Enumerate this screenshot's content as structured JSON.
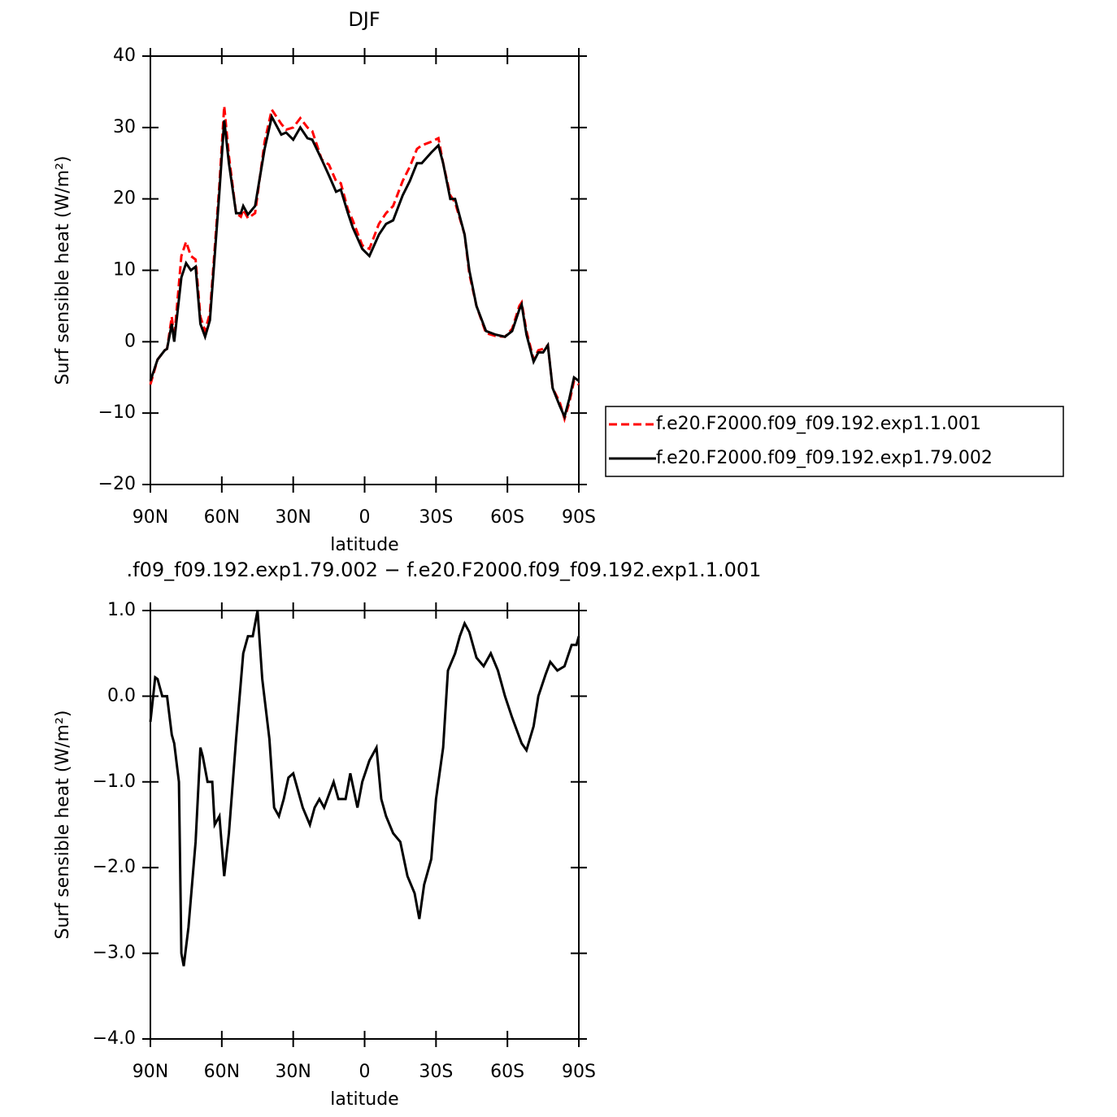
{
  "chart_data": [
    {
      "type": "line",
      "title": "DJF",
      "xlabel": "latitude",
      "ylabel": "Surf sensible heat (W/m²)",
      "x": [
        90,
        87,
        84,
        83,
        81,
        80,
        77,
        75,
        73,
        71,
        69,
        67,
        65,
        63,
        61,
        59,
        57,
        54,
        52,
        51,
        49,
        46,
        42,
        39,
        35,
        33,
        30,
        27,
        24,
        22,
        18,
        15,
        12,
        10,
        7,
        5,
        1,
        -2,
        -6,
        -9,
        -12,
        -16,
        -19,
        -22,
        -24,
        -28,
        -31,
        -33,
        -36,
        -38,
        -42,
        -44,
        -47,
        -51,
        -55,
        -59,
        -62,
        -65,
        -66,
        -68,
        -71,
        -73,
        -75,
        -77,
        -79,
        -82,
        -84,
        -86,
        -88,
        -90
      ],
      "series": [
        {
          "name": "f.e20.F2000.f09_f09.192.exp1.1.001",
          "color": "#ff0000",
          "linestyle": "dashed",
          "values": [
            -6,
            -2.5,
            -1.2,
            -1,
            3.5,
            0.5,
            12,
            14,
            12,
            11.5,
            3.5,
            1.5,
            4,
            13,
            22,
            33,
            26,
            18,
            17.5,
            18.5,
            17.3,
            18,
            28,
            32.5,
            30.5,
            29.7,
            30,
            31.3,
            30,
            29.5,
            25.5,
            24.8,
            22.5,
            22.2,
            18.5,
            17,
            13.5,
            13,
            16.5,
            18,
            19,
            22.5,
            24.5,
            27,
            27.5,
            28,
            28.5,
            25,
            20.5,
            19.5,
            15,
            9.5,
            5,
            1.2,
            0.8,
            0.7,
            1.8,
            5,
            5.5,
            1.5,
            -2.5,
            -1.2,
            -1,
            -0.5,
            -6.5,
            -8.5,
            -10.8,
            -8.5,
            -5.5,
            -6
          ]
        },
        {
          "name": "f.e20.F2000.f09_f09.192.exp1.79.002",
          "color": "#000000",
          "linestyle": "solid",
          "values": [
            -5.5,
            -2.5,
            -1.2,
            -1,
            2.5,
            0,
            9,
            11,
            10,
            10.5,
            2.5,
            0.7,
            3,
            12,
            21,
            31,
            25,
            18,
            18,
            19,
            17.8,
            19,
            27,
            31.5,
            29,
            29.3,
            28.3,
            30,
            28.5,
            28.3,
            25.5,
            23.3,
            21,
            21.3,
            18,
            16,
            13,
            12,
            15,
            16.5,
            17,
            20.5,
            22.5,
            25,
            25,
            26.5,
            27.5,
            25,
            20,
            20,
            15,
            10,
            5,
            1.5,
            1,
            0.7,
            1.5,
            4.5,
            5.2,
            1,
            -2.8,
            -1.5,
            -1.5,
            -0.5,
            -6.5,
            -9,
            -10.5,
            -8,
            -5,
            -5.5
          ]
        }
      ],
      "xlim": [
        90,
        -90
      ],
      "xticks": [
        {
          "value": 90,
          "label": "90N"
        },
        {
          "value": 60,
          "label": "60N"
        },
        {
          "value": 30,
          "label": "30N"
        },
        0,
        {
          "value": -30,
          "label": "30S"
        },
        {
          "value": -60,
          "label": "60S"
        },
        {
          "value": -90,
          "label": "90S"
        }
      ],
      "ylim": [
        -20,
        40
      ],
      "yticks": [
        {
          "value": -20,
          "label": "−20"
        },
        {
          "value": -10,
          "label": "−10"
        },
        0,
        10,
        20,
        30,
        40
      ],
      "legend": "right"
    },
    {
      "type": "line",
      "title": ".f09_f09.192.exp1.79.002 − f.e20.F2000.f09_f09.192.exp1.1.001",
      "xlabel": "latitude",
      "ylabel": "Surf sensible heat (W/m²)",
      "x": [
        90,
        88,
        87,
        85,
        83,
        81,
        80,
        78,
        77,
        76,
        74,
        71,
        69,
        68,
        66,
        64,
        63,
        61,
        59,
        57,
        54,
        51,
        49,
        47,
        45,
        43,
        40,
        38,
        36,
        34,
        32,
        30,
        29,
        26,
        23,
        21,
        19,
        17,
        13,
        11,
        8,
        6,
        3,
        1,
        -2,
        -5,
        -7,
        -9,
        -12,
        -15,
        -18,
        -21,
        -23,
        -25,
        -28,
        -30,
        -33,
        -35,
        -38,
        -40,
        -42,
        -44,
        -47,
        -50,
        -53,
        -56,
        -59,
        -62,
        -66,
        -68,
        -71,
        -73,
        -76,
        -78,
        -81,
        -84,
        -87,
        -89,
        -90
      ],
      "values": [
        -0.3,
        0.22,
        0.2,
        0,
        0,
        -0.45,
        -0.55,
        -1,
        -3,
        -3.15,
        -2.7,
        -1.7,
        -0.6,
        -0.7,
        -1,
        -1,
        -1.5,
        -1.4,
        -2.1,
        -1.6,
        -0.5,
        0.5,
        0.7,
        0.7,
        1,
        0.2,
        -0.5,
        -1.3,
        -1.4,
        -1.2,
        -0.95,
        -0.9,
        -1,
        -1.3,
        -1.5,
        -1.3,
        -1.2,
        -1.3,
        -1,
        -1.2,
        -1.2,
        -0.9,
        -1.3,
        -1,
        -0.75,
        -0.6,
        -1.2,
        -1.4,
        -1.6,
        -1.7,
        -2.1,
        -2.3,
        -2.6,
        -2.2,
        -1.9,
        -1.2,
        -0.6,
        0.3,
        0.5,
        0.7,
        0.85,
        0.75,
        0.45,
        0.35,
        0.5,
        0.3,
        0,
        -0.25,
        -0.55,
        -0.63,
        -0.35,
        0,
        0.25,
        0.4,
        0.3,
        0.35,
        0.6,
        0.6,
        0.7
      ],
      "color": "#000000",
      "xlim": [
        90,
        -90
      ],
      "xticks": [
        {
          "value": 90,
          "label": "90N"
        },
        {
          "value": 60,
          "label": "60N"
        },
        {
          "value": 30,
          "label": "30N"
        },
        0,
        {
          "value": -30,
          "label": "30S"
        },
        {
          "value": -60,
          "label": "60S"
        },
        {
          "value": -90,
          "label": "90S"
        }
      ],
      "ylim": [
        -4,
        1
      ],
      "yticks": [
        {
          "value": -4,
          "label": "−4.0"
        },
        {
          "value": -3,
          "label": "−3.0"
        },
        {
          "value": -2,
          "label": "−2.0"
        },
        {
          "value": -1,
          "label": "−1.0"
        },
        {
          "value": 0,
          "label": "0.0"
        },
        {
          "value": 1,
          "label": "1.0"
        }
      ]
    }
  ]
}
